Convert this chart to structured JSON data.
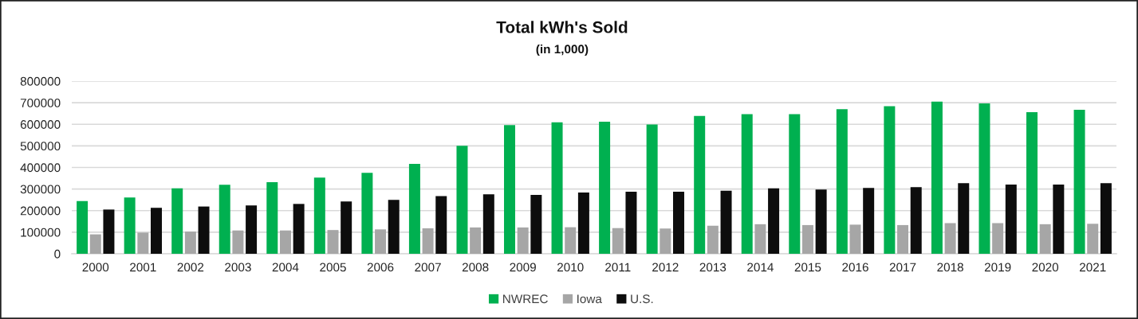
{
  "chart_data": {
    "type": "bar",
    "title": "Total kWh's Sold",
    "subtitle": "(in 1,000)",
    "categories": [
      "2000",
      "2001",
      "2002",
      "2003",
      "2004",
      "2005",
      "2006",
      "2007",
      "2008",
      "2009",
      "2010",
      "2011",
      "2012",
      "2013",
      "2014",
      "2015",
      "2016",
      "2017",
      "2018",
      "2019",
      "2020",
      "2021"
    ],
    "series": [
      {
        "name": "NWREC",
        "color": "#00b050",
        "values": [
          244000,
          261000,
          303000,
          320000,
          332000,
          353000,
          375000,
          417000,
          500000,
          596000,
          609000,
          612000,
          599000,
          639000,
          647000,
          647000,
          670000,
          684000,
          705000,
          697000,
          656000,
          667000
        ]
      },
      {
        "name": "Iowa",
        "color": "#a6a6a6",
        "values": [
          90000,
          98000,
          103000,
          108000,
          108000,
          110000,
          113000,
          118000,
          122000,
          122000,
          123000,
          119000,
          117000,
          130000,
          137000,
          133000,
          135000,
          133000,
          142000,
          142000,
          137000,
          139000
        ]
      },
      {
        "name": "U.S.",
        "color": "#0d0d0d",
        "values": [
          205000,
          213000,
          219000,
          224000,
          231000,
          242000,
          250000,
          267000,
          276000,
          273000,
          284000,
          288000,
          288000,
          292000,
          303000,
          298000,
          305000,
          309000,
          327000,
          321000,
          321000,
          327000
        ]
      }
    ],
    "ylim": [
      0,
      800000
    ],
    "yticks": [
      0,
      100000,
      200000,
      300000,
      400000,
      500000,
      600000,
      700000,
      800000
    ],
    "grid": "y",
    "legend": "bottom"
  }
}
